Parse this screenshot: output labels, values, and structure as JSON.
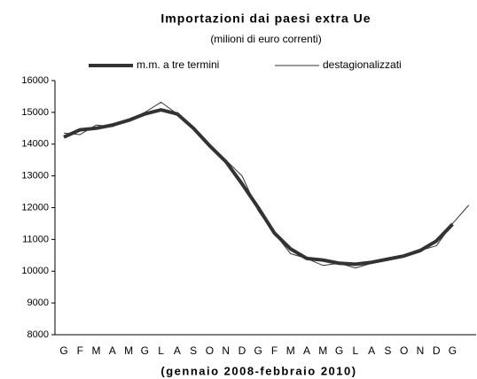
{
  "chart_data": {
    "type": "line",
    "title": "Importazioni dai paesi extra Ue",
    "subtitle": "(milioni di euro correnti)",
    "x_label": "(gennaio 2008-febbraio 2010)",
    "categories": [
      "G",
      "F",
      "M",
      "A",
      "M",
      "G",
      "L",
      "A",
      "S",
      "O",
      "N",
      "D",
      "G",
      "F",
      "M",
      "A",
      "M",
      "G",
      "L",
      "A",
      "S",
      "O",
      "N",
      "D",
      "G",
      null
    ],
    "series": [
      {
        "name": "m.m. a tre termini",
        "color": "#333333",
        "width": 4,
        "values": [
          14220,
          14450,
          14500,
          14600,
          14750,
          14950,
          15080,
          14950,
          14500,
          13950,
          13450,
          12750,
          12000,
          11200,
          10700,
          10400,
          10350,
          10250,
          10220,
          10280,
          10380,
          10480,
          10650,
          10950,
          11480,
          null
        ]
      },
      {
        "name": "destagionalizzati",
        "color": "#333333",
        "width": 1,
        "values": [
          14350,
          14300,
          14600,
          14550,
          14750,
          15000,
          15320,
          14950,
          14550,
          13900,
          13500,
          13000,
          11900,
          11200,
          10550,
          10400,
          10180,
          10250,
          10100,
          10250,
          10400,
          10450,
          10650,
          10800,
          11500,
          12080
        ]
      }
    ],
    "ylim": [
      8000,
      16000
    ],
    "yticks": [
      8000,
      9000,
      10000,
      11000,
      12000,
      13000,
      14000,
      15000,
      16000
    ]
  }
}
